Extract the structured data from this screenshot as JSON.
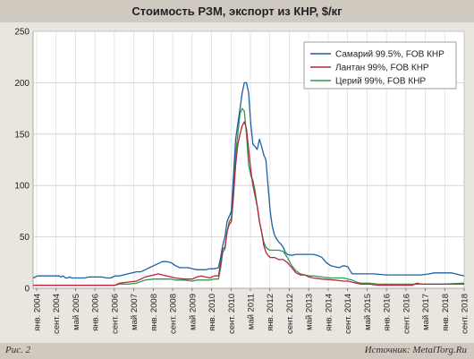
{
  "header": {
    "title": "Стоимость РЗМ, экспорт из КНР, $/кг"
  },
  "footer": {
    "figure_label": "Рис. 2",
    "source": "Источник: MetalTorg.Ru"
  },
  "chart_data": {
    "type": "line",
    "title": "Стоимость РЗМ, экспорт из КНР, $/кг",
    "xlabel": "",
    "ylabel": "",
    "ylim": [
      0,
      250
    ],
    "yticks": [
      0,
      50,
      100,
      150,
      200,
      250
    ],
    "grid": true,
    "legend_position": "top-right",
    "x_tick_labels": [
      "янв. 2004",
      "сент. 2004",
      "май 2005",
      "янв. 2006",
      "сент. 2006",
      "май 2007",
      "янв. 2008",
      "сент. 2008",
      "май 2009",
      "янв. 2010",
      "сент. 2010",
      "май 2011",
      "янв. 2012",
      "сент. 2012",
      "май 2013",
      "янв. 2014",
      "сент. 2014",
      "май 2015",
      "янв. 2016",
      "сент. 2016",
      "май 2017",
      "янв. 2018",
      "сент. 2018"
    ],
    "series": [
      {
        "name": "Самарий 99.5%, FOB КНР",
        "color": "#1f5fa8",
        "points": [
          [
            0,
            10
          ],
          [
            1,
            11
          ],
          [
            2,
            12
          ],
          [
            4,
            12
          ],
          [
            8,
            12
          ],
          [
            10,
            12
          ],
          [
            12,
            12
          ],
          [
            13,
            11
          ],
          [
            14,
            12
          ],
          [
            15,
            10
          ],
          [
            16,
            10
          ],
          [
            17,
            11
          ],
          [
            18,
            10
          ],
          [
            20,
            10
          ],
          [
            24,
            10
          ],
          [
            26,
            11
          ],
          [
            30,
            11
          ],
          [
            32,
            11
          ],
          [
            34,
            10
          ],
          [
            36,
            10
          ],
          [
            38,
            12
          ],
          [
            40,
            12
          ],
          [
            44,
            14
          ],
          [
            48,
            16
          ],
          [
            50,
            16
          ],
          [
            52,
            18
          ],
          [
            54,
            20
          ],
          [
            56,
            22
          ],
          [
            58,
            24
          ],
          [
            60,
            26
          ],
          [
            62,
            26
          ],
          [
            64,
            25
          ],
          [
            66,
            22
          ],
          [
            68,
            20
          ],
          [
            70,
            20
          ],
          [
            72,
            20
          ],
          [
            74,
            19
          ],
          [
            76,
            18
          ],
          [
            78,
            18
          ],
          [
            80,
            18
          ],
          [
            82,
            19
          ],
          [
            84,
            19
          ],
          [
            86,
            20
          ],
          [
            87,
            30
          ],
          [
            88,
            42
          ],
          [
            89,
            50
          ],
          [
            90,
            65
          ],
          [
            91,
            70
          ],
          [
            92,
            75
          ],
          [
            93,
            110
          ],
          [
            94,
            145
          ],
          [
            95,
            160
          ],
          [
            96,
            175
          ],
          [
            97,
            190
          ],
          [
            98,
            200
          ],
          [
            99,
            200
          ],
          [
            100,
            190
          ],
          [
            101,
            160
          ],
          [
            102,
            140
          ],
          [
            103,
            138
          ],
          [
            104,
            135
          ],
          [
            105,
            145
          ],
          [
            106,
            138
          ],
          [
            107,
            130
          ],
          [
            108,
            125
          ],
          [
            109,
            100
          ],
          [
            110,
            75
          ],
          [
            111,
            60
          ],
          [
            112,
            52
          ],
          [
            113,
            48
          ],
          [
            114,
            45
          ],
          [
            115,
            43
          ],
          [
            116,
            40
          ],
          [
            117,
            35
          ],
          [
            118,
            33
          ],
          [
            120,
            32
          ],
          [
            122,
            33
          ],
          [
            124,
            33
          ],
          [
            128,
            33
          ],
          [
            130,
            33
          ],
          [
            132,
            32
          ],
          [
            134,
            30
          ],
          [
            136,
            25
          ],
          [
            138,
            22
          ],
          [
            140,
            21
          ],
          [
            142,
            20
          ],
          [
            144,
            22
          ],
          [
            146,
            21
          ],
          [
            148,
            14
          ],
          [
            150,
            14
          ],
          [
            154,
            14
          ],
          [
            158,
            14
          ],
          [
            164,
            13
          ],
          [
            170,
            13
          ],
          [
            176,
            13
          ],
          [
            180,
            13
          ],
          [
            184,
            14
          ],
          [
            186,
            15
          ],
          [
            190,
            15
          ],
          [
            194,
            15
          ],
          [
            196,
            14
          ],
          [
            198,
            13
          ],
          [
            200,
            12
          ]
        ]
      },
      {
        "name": "Лантан 99%, FOB КНР",
        "color": "#b8233f",
        "points": [
          [
            0,
            3
          ],
          [
            10,
            3
          ],
          [
            20,
            3
          ],
          [
            30,
            3
          ],
          [
            38,
            3
          ],
          [
            40,
            5
          ],
          [
            44,
            6
          ],
          [
            48,
            7
          ],
          [
            50,
            9
          ],
          [
            52,
            11
          ],
          [
            56,
            13
          ],
          [
            58,
            14
          ],
          [
            60,
            13
          ],
          [
            62,
            12
          ],
          [
            64,
            11
          ],
          [
            66,
            10
          ],
          [
            70,
            9
          ],
          [
            74,
            9
          ],
          [
            76,
            11
          ],
          [
            78,
            12
          ],
          [
            80,
            11
          ],
          [
            82,
            10
          ],
          [
            84,
            12
          ],
          [
            86,
            12
          ],
          [
            87,
            25
          ],
          [
            88,
            38
          ],
          [
            89,
            40
          ],
          [
            90,
            55
          ],
          [
            91,
            62
          ],
          [
            92,
            65
          ],
          [
            93,
            90
          ],
          [
            94,
            120
          ],
          [
            95,
            140
          ],
          [
            96,
            150
          ],
          [
            97,
            158
          ],
          [
            98,
            162
          ],
          [
            99,
            155
          ],
          [
            100,
            135
          ],
          [
            101,
            115
          ],
          [
            102,
            100
          ],
          [
            103,
            90
          ],
          [
            104,
            80
          ],
          [
            105,
            65
          ],
          [
            106,
            55
          ],
          [
            107,
            42
          ],
          [
            108,
            35
          ],
          [
            109,
            32
          ],
          [
            110,
            30
          ],
          [
            112,
            30
          ],
          [
            114,
            28
          ],
          [
            116,
            28
          ],
          [
            118,
            25
          ],
          [
            120,
            20
          ],
          [
            122,
            15
          ],
          [
            124,
            13
          ],
          [
            126,
            13
          ],
          [
            128,
            11
          ],
          [
            130,
            10
          ],
          [
            134,
            9
          ],
          [
            140,
            8
          ],
          [
            144,
            7
          ],
          [
            146,
            7
          ],
          [
            148,
            6
          ],
          [
            150,
            5
          ],
          [
            152,
            4
          ],
          [
            156,
            4
          ],
          [
            160,
            3
          ],
          [
            170,
            3
          ],
          [
            176,
            3
          ],
          [
            178,
            5
          ],
          [
            180,
            4
          ],
          [
            190,
            4
          ],
          [
            200,
            4
          ]
        ]
      },
      {
        "name": "Церий 99%, FOB КНР",
        "color": "#2f9a4a",
        "points": [
          [
            0,
            3
          ],
          [
            10,
            3
          ],
          [
            20,
            3
          ],
          [
            30,
            3
          ],
          [
            38,
            3
          ],
          [
            40,
            4
          ],
          [
            44,
            4
          ],
          [
            48,
            5
          ],
          [
            52,
            8
          ],
          [
            56,
            9
          ],
          [
            60,
            9
          ],
          [
            64,
            9
          ],
          [
            66,
            8
          ],
          [
            70,
            8
          ],
          [
            74,
            7
          ],
          [
            76,
            8
          ],
          [
            78,
            8
          ],
          [
            80,
            8
          ],
          [
            82,
            8
          ],
          [
            84,
            9
          ],
          [
            86,
            9
          ],
          [
            87,
            20
          ],
          [
            88,
            35
          ],
          [
            89,
            38
          ],
          [
            90,
            55
          ],
          [
            91,
            65
          ],
          [
            92,
            68
          ],
          [
            93,
            95
          ],
          [
            94,
            130
          ],
          [
            95,
            150
          ],
          [
            96,
            170
          ],
          [
            97,
            175
          ],
          [
            98,
            172
          ],
          [
            99,
            150
          ],
          [
            100,
            120
          ],
          [
            101,
            110
          ],
          [
            102,
            105
          ],
          [
            103,
            95
          ],
          [
            104,
            80
          ],
          [
            105,
            65
          ],
          [
            106,
            55
          ],
          [
            107,
            45
          ],
          [
            108,
            40
          ],
          [
            109,
            38
          ],
          [
            110,
            37
          ],
          [
            112,
            37
          ],
          [
            114,
            37
          ],
          [
            116,
            36
          ],
          [
            118,
            30
          ],
          [
            120,
            22
          ],
          [
            122,
            17
          ],
          [
            124,
            14
          ],
          [
            126,
            13
          ],
          [
            128,
            12
          ],
          [
            130,
            12
          ],
          [
            134,
            11
          ],
          [
            138,
            10
          ],
          [
            140,
            10
          ],
          [
            144,
            10
          ],
          [
            146,
            9
          ],
          [
            148,
            8
          ],
          [
            150,
            6
          ],
          [
            152,
            5
          ],
          [
            156,
            5
          ],
          [
            160,
            4
          ],
          [
            170,
            4
          ],
          [
            180,
            4
          ],
          [
            190,
            4
          ],
          [
            200,
            5
          ]
        ]
      }
    ]
  }
}
